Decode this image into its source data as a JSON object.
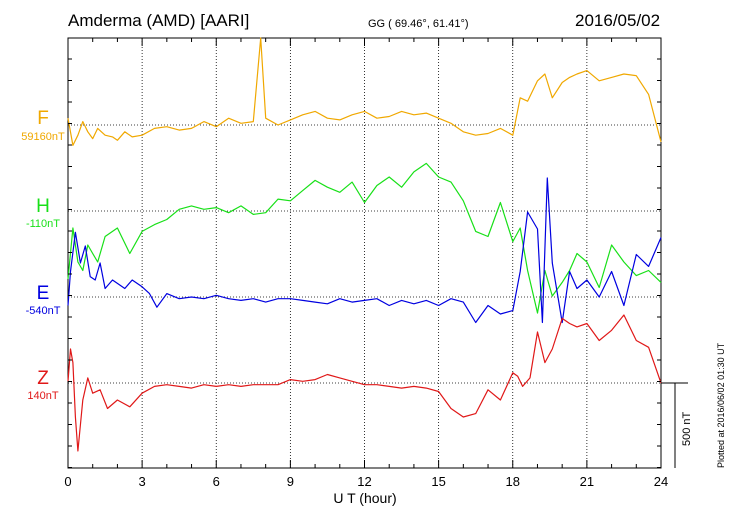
{
  "header": {
    "station": "Amderma (AMD)  [AARI]",
    "coords": "GG ( 69.46°,  61.41°)",
    "date": "2016/05/02"
  },
  "footer": {
    "plotted": "Plotted at 2016/06/02 01:30 UT"
  },
  "chart_data": {
    "type": "line",
    "title": "Amderma (AMD)  [AARI]",
    "xlabel": "U T (hour)",
    "xlim": [
      0,
      24
    ],
    "xticks": [
      "0",
      "3",
      "6",
      "9",
      "12",
      "15",
      "18",
      "21",
      "24"
    ],
    "scale_bar": "500 nT",
    "scale_bar_nT": 500,
    "grid": true,
    "series": [
      {
        "name": "F",
        "baseline_label": "59160nT",
        "color": "#f0a800",
        "x": [
          0.0,
          0.2,
          0.4,
          0.6,
          0.8,
          1.0,
          1.2,
          1.5,
          1.8,
          2.0,
          2.3,
          2.6,
          3.0,
          3.5,
          4.0,
          4.5,
          5.0,
          5.5,
          6.0,
          6.5,
          7.0,
          7.5,
          7.8,
          8.0,
          8.5,
          9.0,
          9.5,
          10.0,
          10.5,
          11.0,
          11.5,
          12.0,
          12.5,
          13.0,
          13.5,
          14.0,
          14.5,
          15.0,
          15.5,
          16.0,
          16.5,
          17.0,
          17.5,
          18.0,
          18.3,
          18.6,
          19.0,
          19.3,
          19.6,
          20.0,
          20.3,
          20.6,
          21.0,
          21.5,
          22.0,
          22.5,
          23.0,
          23.5,
          24.0
        ],
        "y": [
          40,
          -120,
          -60,
          20,
          -40,
          -80,
          -20,
          -60,
          -70,
          -90,
          -40,
          -70,
          -60,
          -20,
          -10,
          -30,
          -20,
          20,
          -10,
          40,
          10,
          20,
          740,
          40,
          0,
          30,
          60,
          80,
          40,
          30,
          60,
          80,
          40,
          50,
          80,
          60,
          70,
          40,
          10,
          -40,
          -60,
          -50,
          -20,
          -60,
          160,
          140,
          260,
          300,
          160,
          250,
          280,
          300,
          320,
          260,
          280,
          300,
          290,
          180,
          -100
        ]
      },
      {
        "name": "H",
        "baseline_label": "-110nT",
        "color": "#18e018",
        "x": [
          0.0,
          0.2,
          0.4,
          0.6,
          0.8,
          1.0,
          1.2,
          1.5,
          2.0,
          2.5,
          3.0,
          3.5,
          4.0,
          4.5,
          5.0,
          5.5,
          6.0,
          6.5,
          7.0,
          7.5,
          8.0,
          8.5,
          9.0,
          9.5,
          10.0,
          10.5,
          11.0,
          11.5,
          12.0,
          12.5,
          13.0,
          13.5,
          14.0,
          14.5,
          15.0,
          15.5,
          16.0,
          16.5,
          17.0,
          17.5,
          18.0,
          18.3,
          18.6,
          19.0,
          19.3,
          19.6,
          20.0,
          20.3,
          20.6,
          21.0,
          21.5,
          22.0,
          22.5,
          23.0,
          23.5,
          24.0
        ],
        "y": [
          -400,
          -100,
          -300,
          -350,
          -200,
          -250,
          -300,
          -150,
          -100,
          -250,
          -120,
          -80,
          -50,
          10,
          30,
          10,
          20,
          -10,
          30,
          -20,
          -10,
          70,
          60,
          120,
          180,
          140,
          110,
          170,
          50,
          150,
          200,
          140,
          230,
          280,
          200,
          170,
          60,
          -120,
          -150,
          50,
          -180,
          -100,
          -350,
          -600,
          -350,
          -500,
          -420,
          -350,
          -250,
          -300,
          -450,
          -200,
          -300,
          -380,
          -350,
          -420
        ]
      },
      {
        "name": "E",
        "baseline_label": "-540nT",
        "color": "#0000e0",
        "x": [
          0.0,
          0.1,
          0.3,
          0.5,
          0.7,
          0.9,
          1.1,
          1.3,
          1.5,
          1.8,
          2.0,
          2.3,
          2.6,
          3.0,
          3.3,
          3.6,
          4.0,
          4.5,
          5.0,
          5.5,
          6.0,
          6.5,
          7.0,
          7.5,
          8.0,
          8.5,
          9.0,
          9.5,
          10.0,
          10.5,
          11.0,
          11.5,
          12.0,
          12.5,
          13.0,
          13.5,
          14.0,
          14.5,
          15.0,
          15.5,
          16.0,
          16.5,
          17.0,
          17.5,
          18.0,
          18.3,
          18.6,
          19.0,
          19.2,
          19.4,
          19.6,
          20.0,
          20.3,
          20.6,
          21.0,
          21.5,
          22.0,
          22.5,
          23.0,
          23.5,
          24.0
        ],
        "y": [
          -50,
          150,
          380,
          200,
          300,
          120,
          100,
          200,
          50,
          100,
          80,
          50,
          100,
          60,
          20,
          -60,
          20,
          -10,
          0,
          -10,
          10,
          -10,
          -20,
          -10,
          -30,
          -10,
          -10,
          -20,
          -30,
          -40,
          -10,
          -30,
          -20,
          -10,
          -50,
          -20,
          -40,
          -20,
          -50,
          -10,
          -30,
          -150,
          -50,
          -100,
          -80,
          150,
          500,
          400,
          -150,
          700,
          200,
          -150,
          150,
          50,
          100,
          0,
          150,
          -50,
          250,
          180,
          350
        ]
      },
      {
        "name": "Z",
        "baseline_label": "140nT",
        "color": "#e01818",
        "x": [
          0.0,
          0.1,
          0.2,
          0.3,
          0.4,
          0.6,
          0.8,
          1.0,
          1.3,
          1.6,
          2.0,
          2.5,
          3.0,
          3.5,
          4.0,
          4.5,
          5.0,
          5.5,
          6.0,
          6.5,
          7.0,
          7.5,
          8.0,
          8.5,
          9.0,
          9.5,
          10.0,
          10.5,
          11.0,
          11.5,
          12.0,
          12.5,
          13.0,
          13.5,
          14.0,
          14.5,
          15.0,
          15.5,
          16.0,
          16.5,
          17.0,
          17.5,
          18.0,
          18.2,
          18.4,
          18.7,
          19.0,
          19.3,
          19.6,
          20.0,
          20.3,
          20.6,
          21.0,
          21.5,
          22.0,
          22.5,
          23.0,
          23.5,
          24.0
        ],
        "y": [
          10,
          200,
          120,
          -200,
          -400,
          -100,
          30,
          -60,
          -40,
          -150,
          -100,
          -140,
          -60,
          -20,
          -10,
          -20,
          -30,
          -10,
          -20,
          -10,
          -20,
          -10,
          -10,
          -10,
          20,
          10,
          20,
          50,
          30,
          10,
          -10,
          -10,
          -20,
          -30,
          -20,
          -30,
          -50,
          -150,
          -200,
          -180,
          -40,
          -100,
          60,
          40,
          -20,
          30,
          300,
          120,
          200,
          380,
          350,
          330,
          350,
          250,
          310,
          400,
          250,
          210,
          0
        ]
      }
    ]
  }
}
